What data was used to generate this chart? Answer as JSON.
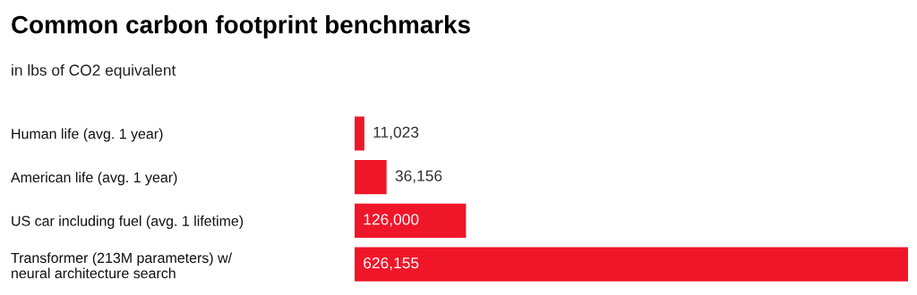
{
  "chart_data": {
    "type": "bar",
    "orientation": "horizontal",
    "title": "Common carbon footprint benchmarks",
    "subtitle": "in lbs of CO2 equivalent",
    "categories": [
      "Human life (avg. 1 year)",
      "American life (avg. 1 year)",
      "US car including fuel (avg. 1 lifetime)",
      "Transformer (213M parameters) w/\nneural architecture search"
    ],
    "values": [
      11023,
      36156,
      126000,
      626155
    ],
    "value_labels": [
      "11,023",
      "36,156",
      "126,000",
      "626,155"
    ],
    "color": "#f0162a",
    "grid": false,
    "legend": false
  }
}
